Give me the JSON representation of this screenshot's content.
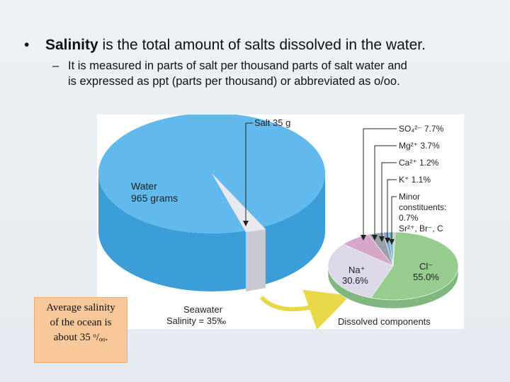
{
  "bullet": {
    "term": "Salinity",
    "text": "is the total amount of salts dissolved in the water.",
    "sub": {
      "lines": [
        "It is measured in parts of salt per thousand parts of salt water and",
        "is expressed as ppt (parts per thousand) or abbreviated as o/oo."
      ]
    }
  },
  "figure": {
    "salt_label": "Salt 35 g",
    "water_label": [
      "Water",
      "965 grams"
    ],
    "seawater_label": [
      "Seawater",
      "Salinity = 35‰"
    ],
    "components_title": "Dissolved components",
    "components": [
      "SO₄²⁻  7.7%",
      "Mg²⁺  3.7%",
      "Ca²⁺  1.2%",
      "K⁺  1.1%"
    ],
    "minor": [
      "Minor",
      "constituents:",
      "0.7%",
      "Sr²⁺, Br⁻, C"
    ],
    "na_label": [
      "Na⁺",
      "30.6%"
    ],
    "cl_label": [
      "Cl⁻",
      "55.0%"
    ]
  },
  "callout": {
    "lines": [
      "Average salinity",
      "of the ocean is",
      "about 35 ᵒ/ₒₒ."
    ]
  }
}
